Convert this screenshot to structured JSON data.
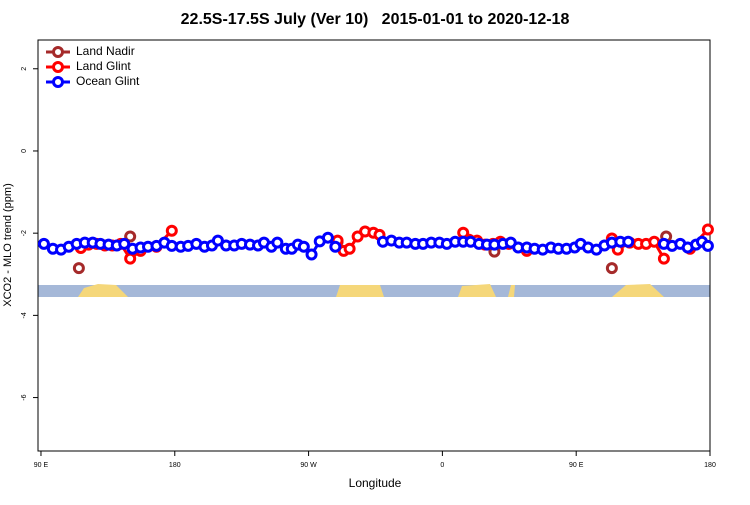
{
  "chart_data": {
    "type": "line",
    "title": "22.5S-17.5S July (Ver 10)   2015-01-01 to 2020-12-18",
    "x_label": "Longitude",
    "y_label": "XCO2 - MLO trend (ppm)",
    "xlim": [
      88,
      540
    ],
    "ylim": [
      -7.3,
      2.7
    ],
    "xticks": [
      {
        "value": 90,
        "label": "90 E"
      },
      {
        "value": 180,
        "label": "180"
      },
      {
        "value": 270,
        "label": "90 W"
      },
      {
        "value": 360,
        "label": "0"
      },
      {
        "value": 450,
        "label": "90 E"
      },
      {
        "value": 540,
        "label": "180"
      }
    ],
    "yticks": [
      2,
      0,
      -2,
      -4,
      -6
    ],
    "legend": "top-left",
    "series": [
      {
        "name": "Land Nadir",
        "color": "#a52a2a",
        "x": [
          115.5,
          150,
          289.5,
          395,
          474,
          510.5
        ],
        "values": [
          -2.85,
          -2.08,
          -2.21,
          -2.45,
          -2.85,
          -2.08
        ]
      },
      {
        "name": "Land Glint",
        "color": "#ff0000",
        "x": [
          116.8,
          122,
          127.5,
          133,
          138,
          143.6,
          150,
          157,
          167.7,
          178,
          289.5,
          293.6,
          297.6,
          303,
          308,
          313.6,
          317.7,
          374,
          378,
          383.3,
          388.6,
          394,
          399,
          404.7,
          416.8,
          474,
          478,
          486,
          491.8,
          497,
          502.5,
          509,
          526.6,
          538.6
        ],
        "values": [
          -2.36,
          -2.28,
          -2.26,
          -2.3,
          -2.3,
          -2.26,
          -2.62,
          -2.43,
          -2.33,
          -1.94,
          -2.18,
          -2.43,
          -2.38,
          -2.08,
          -1.96,
          -1.99,
          -2.04,
          -1.99,
          -2.16,
          -2.18,
          -2.28,
          -2.26,
          -2.21,
          -2.26,
          -2.43,
          -2.13,
          -2.4,
          -2.23,
          -2.26,
          -2.26,
          -2.21,
          -2.62,
          -2.38,
          -1.91
        ]
      },
      {
        "name": "Ocean Glint",
        "color": "#0000ff",
        "x": [
          92,
          98,
          103.5,
          108.7,
          114,
          119.5,
          124.8,
          130,
          135.5,
          141,
          146,
          151.6,
          157,
          162,
          167.7,
          173,
          178,
          184,
          189,
          194.5,
          200,
          205,
          209,
          214.5,
          220,
          225,
          230.6,
          236,
          240,
          245,
          249,
          254.7,
          258.7,
          262.8,
          266.8,
          272,
          277.5,
          283,
          288,
          320,
          325.7,
          331,
          336,
          341.8,
          347,
          352.5,
          358,
          363,
          368.6,
          374,
          379,
          384.6,
          390,
          395,
          400.7,
          406,
          411,
          416.8,
          422,
          427.5,
          433,
          438,
          443.5,
          449,
          453,
          458,
          463.6,
          469,
          474,
          479.7,
          485,
          509,
          514.5,
          520,
          525,
          530.6,
          534.6,
          538.6
        ],
        "values": [
          -2.26,
          -2.38,
          -2.4,
          -2.33,
          -2.26,
          -2.23,
          -2.23,
          -2.26,
          -2.28,
          -2.3,
          -2.26,
          -2.38,
          -2.35,
          -2.33,
          -2.31,
          -2.23,
          -2.31,
          -2.33,
          -2.31,
          -2.26,
          -2.33,
          -2.3,
          -2.18,
          -2.3,
          -2.3,
          -2.26,
          -2.28,
          -2.3,
          -2.23,
          -2.33,
          -2.23,
          -2.38,
          -2.38,
          -2.28,
          -2.33,
          -2.52,
          -2.2,
          -2.11,
          -2.33,
          -2.21,
          -2.18,
          -2.23,
          -2.23,
          -2.26,
          -2.26,
          -2.23,
          -2.23,
          -2.26,
          -2.21,
          -2.21,
          -2.21,
          -2.26,
          -2.28,
          -2.28,
          -2.26,
          -2.23,
          -2.35,
          -2.35,
          -2.38,
          -2.4,
          -2.35,
          -2.38,
          -2.38,
          -2.35,
          -2.26,
          -2.35,
          -2.4,
          -2.3,
          -2.23,
          -2.21,
          -2.21,
          -2.26,
          -2.31,
          -2.26,
          -2.35,
          -2.28,
          -2.21,
          -2.31
        ]
      }
    ]
  }
}
